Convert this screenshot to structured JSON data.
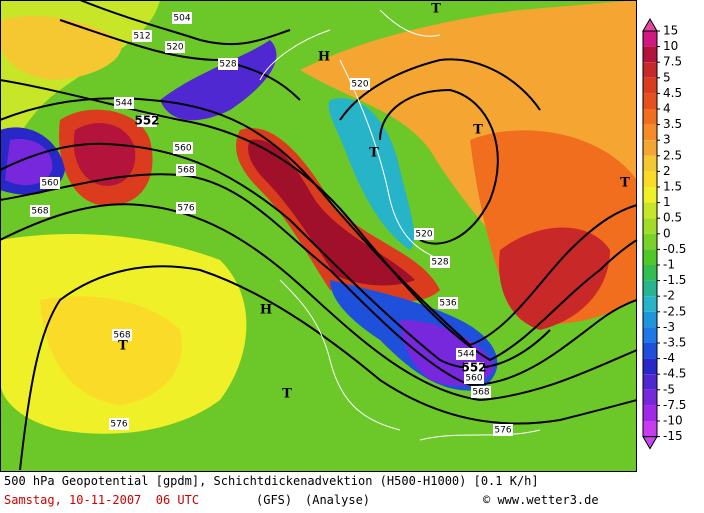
{
  "map": {
    "contour_labels": [
      "504",
      "512",
      "520",
      "528",
      "544",
      "552",
      "560",
      "568",
      "576",
      "560",
      "568",
      "520",
      "520",
      "528",
      "536",
      "544",
      "552",
      "560",
      "568",
      "576",
      "576",
      "568"
    ],
    "pressure_centers": [
      "H",
      "H",
      "T",
      "T",
      "T",
      "T",
      "T",
      "T"
    ]
  },
  "colorbar": {
    "labels": [
      "15",
      "10",
      "7.5",
      "5",
      "4.5",
      "4",
      "3.5",
      "3",
      "2.5",
      "2",
      "1.5",
      "1",
      "0.5",
      "0",
      "-0.5",
      "-1",
      "-1.5",
      "-2",
      "-2.5",
      "-3",
      "-3.5",
      "-4",
      "-4.5",
      "-5",
      "-7.5",
      "-10",
      "-15"
    ],
    "colors": [
      "#d01880",
      "#b4143c",
      "#c82828",
      "#dc3c1e",
      "#e6501e",
      "#f06e1e",
      "#f58c28",
      "#f5a532",
      "#f5c832",
      "#fadc28",
      "#f0f028",
      "#c8e628",
      "#a0dc28",
      "#78d228",
      "#50c828",
      "#32be50",
      "#28b48c",
      "#28b4c8",
      "#1e96dc",
      "#1e78e6",
      "#1e50dc",
      "#2828c8",
      "#5028d2",
      "#7828dc",
      "#a028e6",
      "#c83cf0"
    ],
    "top_color": "#e646a0",
    "bottom_color": "#c846f0"
  },
  "footer": {
    "line1": "500 hPa Geopotential [gpdm], Schichtdickenadvektion (H500-H1000) [0.1 K/h]",
    "date": "Samstag, 10-11-2007  06 UTC",
    "model": "(GFS)",
    "run": "(Analyse)",
    "copyright": "© www.wetter3.de"
  }
}
